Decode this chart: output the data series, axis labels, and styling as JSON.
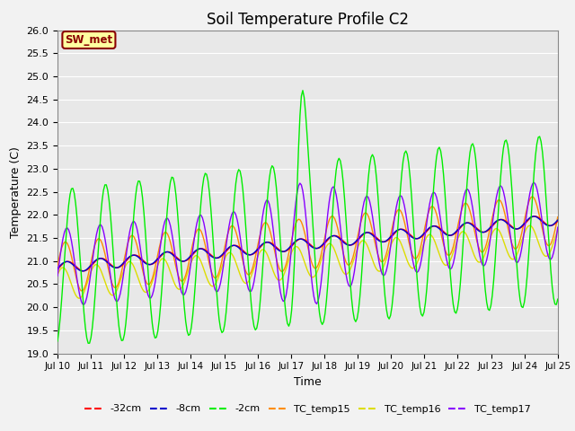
{
  "title": "Soil Temperature Profile C2",
  "xlabel": "Time",
  "ylabel": "Temperature (C)",
  "ylim": [
    19.0,
    26.0
  ],
  "yticks": [
    19.0,
    19.5,
    20.0,
    20.5,
    21.0,
    21.5,
    22.0,
    22.5,
    23.0,
    23.5,
    24.0,
    24.5,
    25.0,
    25.5,
    26.0
  ],
  "xtick_labels": [
    "Jul 10",
    "Jul 11",
    "Jul 12",
    "Jul 13",
    "Jul 14",
    "Jul 15",
    "Jul 16",
    "Jul 17",
    "Jul 18",
    "Jul 19",
    "Jul 20",
    "Jul 21",
    "Jul 22",
    "Jul 23",
    "Jul 24",
    "Jul 25"
  ],
  "annotation_text": "SW_met",
  "annotation_bg": "#FFFFA0",
  "annotation_border": "#8B0000",
  "annotation_text_color": "#8B0000",
  "line_colors": {
    "neg32cm": "#FF0000",
    "neg8cm": "#0000CC",
    "neg2cm": "#00EE00",
    "TC15": "#FF8C00",
    "TC16": "#DDDD00",
    "TC17": "#8800FF"
  },
  "legend_labels": [
    "-32cm",
    "-8cm",
    "-2cm",
    "TC_temp15",
    "TC_temp16",
    "TC_temp17"
  ],
  "bg_color": "#E8E8E8",
  "grid_color": "#FFFFFF",
  "title_fontsize": 12,
  "fig_width": 6.4,
  "fig_height": 4.8,
  "dpi": 100
}
